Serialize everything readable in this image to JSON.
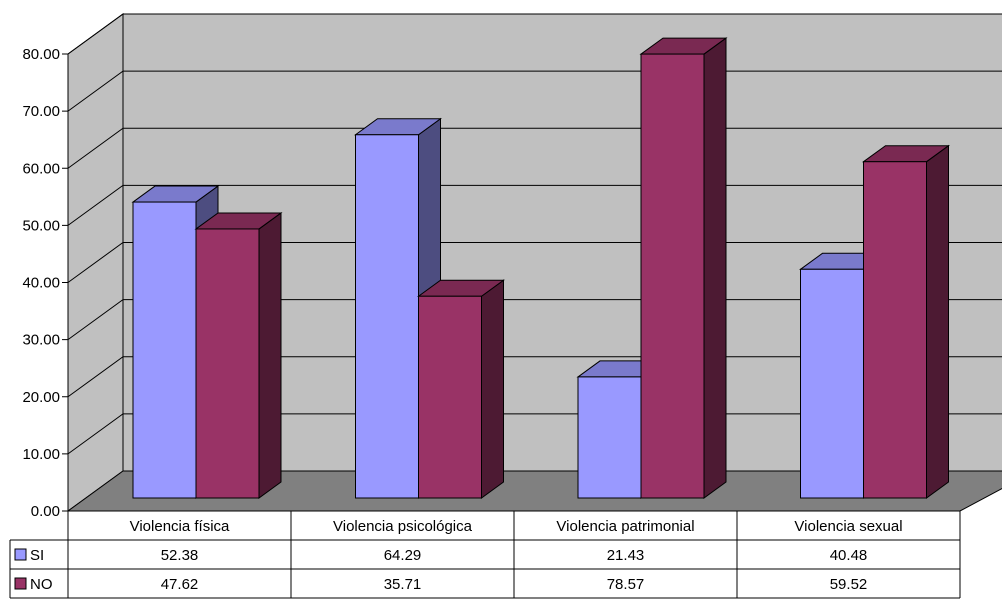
{
  "chart_data": {
    "type": "bar",
    "style": "3d-clustered-column-with-data-table",
    "categories": [
      "Violencia física",
      "Violencia psicológica",
      "Violencia patrimonial",
      "Violencia sexual"
    ],
    "series": [
      {
        "name": "SI",
        "values": [
          52.38,
          64.29,
          21.43,
          40.48
        ],
        "color": "#9999FF",
        "side_color": "#4D4D80",
        "top_color": "#7A7ACC"
      },
      {
        "name": "NO",
        "values": [
          47.62,
          35.71,
          78.57,
          59.52
        ],
        "color": "#993366",
        "side_color": "#4D1A33",
        "top_color": "#7A2952"
      }
    ],
    "y_ticks": [
      "0.00",
      "10.00",
      "20.00",
      "30.00",
      "40.00",
      "50.00",
      "60.00",
      "70.00",
      "80.00"
    ],
    "ylim": [
      0,
      80
    ],
    "grid": true,
    "wall_color": "#C0C0C0",
    "floor_color": "#808080",
    "legend": "data-table",
    "title": "",
    "xlabel": "",
    "ylabel": ""
  }
}
